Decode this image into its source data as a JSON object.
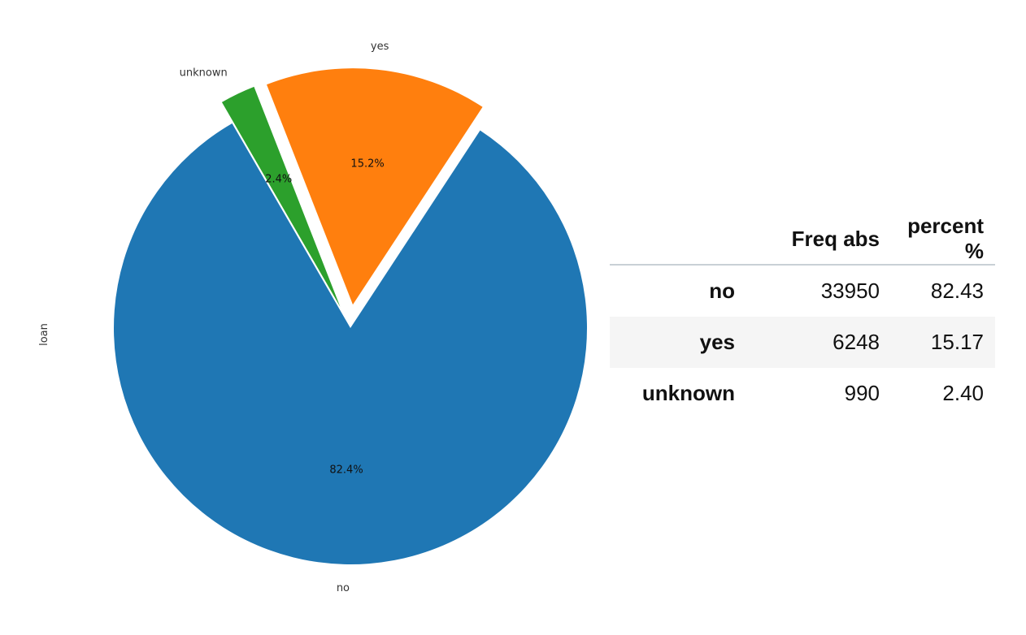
{
  "chart_data": {
    "type": "pie",
    "ylabel": "loan",
    "categories": [
      "no",
      "yes",
      "unknown"
    ],
    "values": [
      82.43,
      15.17,
      2.4
    ],
    "slice_labels": [
      "82.4%",
      "15.2%",
      "2.4%"
    ],
    "exploded": [
      "yes",
      "unknown"
    ],
    "colors": {
      "no": "#1f77b4",
      "yes": "#ff7f0e",
      "unknown": "#2ca02c"
    }
  },
  "table": {
    "columns": [
      "",
      "Freq abs",
      "percent %"
    ],
    "rows": [
      {
        "label": "no",
        "freq": "33950",
        "percent": "82.43"
      },
      {
        "label": "yes",
        "freq": "6248",
        "percent": "15.17"
      },
      {
        "label": "unknown",
        "freq": "990",
        "percent": "2.40"
      }
    ]
  }
}
